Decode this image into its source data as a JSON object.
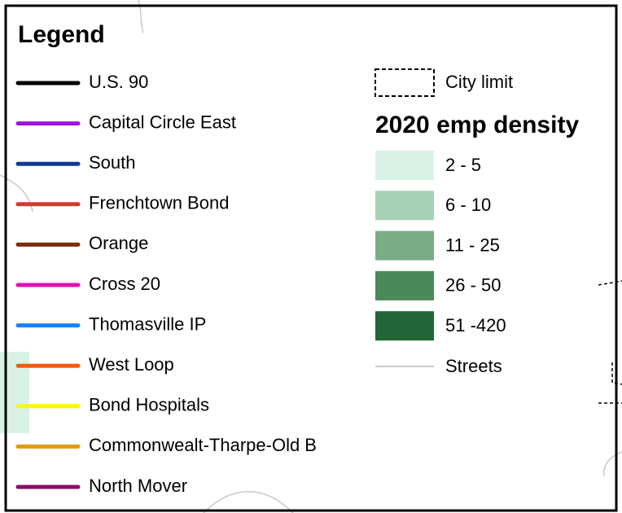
{
  "legend": {
    "title": "Legend",
    "routes": [
      {
        "label": "U.S. 90",
        "color": "#000000"
      },
      {
        "label": "Capital Circle East",
        "color": "#9b12e0"
      },
      {
        "label": "South",
        "color": "#0b3c91"
      },
      {
        "label": "Frenchtown Bond",
        "color": "#d03a35"
      },
      {
        "label": "Orange",
        "color": "#7a2e0c"
      },
      {
        "label": "Cross 20",
        "color": "#e010b0"
      },
      {
        "label": "Thomasville IP",
        "color": "#1a82f0"
      },
      {
        "label": "West Loop",
        "color": "#fa5a10"
      },
      {
        "label": "Bond Hospitals",
        "color": "#f8f800"
      },
      {
        "label": "Commonwealt-Tharpe-Old B",
        "color": "#e39a10"
      },
      {
        "label": "North Mover",
        "color": "#8a0d6a"
      }
    ],
    "city_limit": "City limit",
    "density_title": "2020 emp density",
    "density_classes": [
      {
        "label": "2 - 5",
        "color": "#d8f2e6"
      },
      {
        "label": "6 - 10",
        "color": "#a7d1b6"
      },
      {
        "label": "11 - 25",
        "color": "#79ad85"
      },
      {
        "label": "26 - 50",
        "color": "#4a8a59"
      },
      {
        "label": "51 -420",
        "color": "#226637"
      }
    ],
    "streets": {
      "label": "Streets",
      "color": "#c8c8c8"
    }
  }
}
